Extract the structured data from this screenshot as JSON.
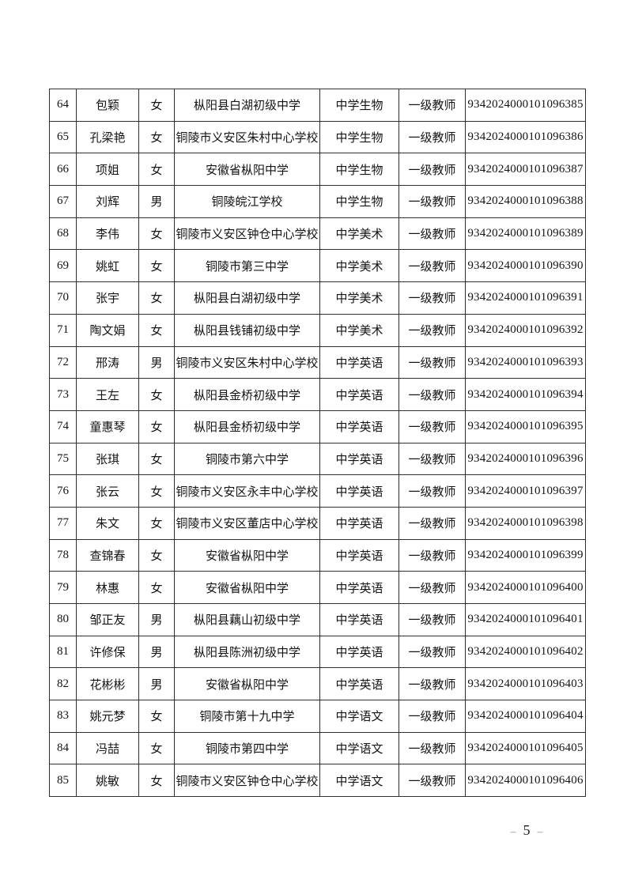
{
  "table": {
    "rows": [
      {
        "no": "64",
        "name": "包颖",
        "gender": "女",
        "school": "枞阳县白湖初级中学",
        "subject": "中学生物",
        "title": "一级教师",
        "cert": "9342024000101096385"
      },
      {
        "no": "65",
        "name": "孔梁艳",
        "gender": "女",
        "school": "铜陵市义安区朱村中心学校",
        "subject": "中学生物",
        "title": "一级教师",
        "cert": "9342024000101096386"
      },
      {
        "no": "66",
        "name": "项姐",
        "gender": "女",
        "school": "安徽省枞阳中学",
        "subject": "中学生物",
        "title": "一级教师",
        "cert": "9342024000101096387"
      },
      {
        "no": "67",
        "name": "刘辉",
        "gender": "男",
        "school": "铜陵皖江学校",
        "subject": "中学生物",
        "title": "一级教师",
        "cert": "9342024000101096388"
      },
      {
        "no": "68",
        "name": "李伟",
        "gender": "女",
        "school": "铜陵市义安区钟仓中心学校",
        "subject": "中学美术",
        "title": "一级教师",
        "cert": "9342024000101096389"
      },
      {
        "no": "69",
        "name": "姚虹",
        "gender": "女",
        "school": "铜陵市第三中学",
        "subject": "中学美术",
        "title": "一级教师",
        "cert": "9342024000101096390"
      },
      {
        "no": "70",
        "name": "张宇",
        "gender": "女",
        "school": "枞阳县白湖初级中学",
        "subject": "中学美术",
        "title": "一级教师",
        "cert": "9342024000101096391"
      },
      {
        "no": "71",
        "name": "陶文娟",
        "gender": "女",
        "school": "枞阳县钱铺初级中学",
        "subject": "中学美术",
        "title": "一级教师",
        "cert": "9342024000101096392"
      },
      {
        "no": "72",
        "name": "邢涛",
        "gender": "男",
        "school": "铜陵市义安区朱村中心学校",
        "subject": "中学英语",
        "title": "一级教师",
        "cert": "9342024000101096393"
      },
      {
        "no": "73",
        "name": "王左",
        "gender": "女",
        "school": "枞阳县金桥初级中学",
        "subject": "中学英语",
        "title": "一级教师",
        "cert": "9342024000101096394"
      },
      {
        "no": "74",
        "name": "童惠琴",
        "gender": "女",
        "school": "枞阳县金桥初级中学",
        "subject": "中学英语",
        "title": "一级教师",
        "cert": "9342024000101096395"
      },
      {
        "no": "75",
        "name": "张琪",
        "gender": "女",
        "school": "铜陵市第六中学",
        "subject": "中学英语",
        "title": "一级教师",
        "cert": "9342024000101096396"
      },
      {
        "no": "76",
        "name": "张云",
        "gender": "女",
        "school": "铜陵市义安区永丰中心学校",
        "subject": "中学英语",
        "title": "一级教师",
        "cert": "9342024000101096397"
      },
      {
        "no": "77",
        "name": "朱文",
        "gender": "女",
        "school": "铜陵市义安区董店中心学校",
        "subject": "中学英语",
        "title": "一级教师",
        "cert": "9342024000101096398"
      },
      {
        "no": "78",
        "name": "查锦春",
        "gender": "女",
        "school": "安徽省枞阳中学",
        "subject": "中学英语",
        "title": "一级教师",
        "cert": "9342024000101096399"
      },
      {
        "no": "79",
        "name": "林惠",
        "gender": "女",
        "school": "安徽省枞阳中学",
        "subject": "中学英语",
        "title": "一级教师",
        "cert": "9342024000101096400"
      },
      {
        "no": "80",
        "name": "邹正友",
        "gender": "男",
        "school": "枞阳县藕山初级中学",
        "subject": "中学英语",
        "title": "一级教师",
        "cert": "9342024000101096401"
      },
      {
        "no": "81",
        "name": "许修保",
        "gender": "男",
        "school": "枞阳县陈洲初级中学",
        "subject": "中学英语",
        "title": "一级教师",
        "cert": "9342024000101096402"
      },
      {
        "no": "82",
        "name": "花彬彬",
        "gender": "男",
        "school": "安徽省枞阳中学",
        "subject": "中学英语",
        "title": "一级教师",
        "cert": "9342024000101096403"
      },
      {
        "no": "83",
        "name": "姚元梦",
        "gender": "女",
        "school": "铜陵市第十九中学",
        "subject": "中学语文",
        "title": "一级教师",
        "cert": "9342024000101096404"
      },
      {
        "no": "84",
        "name": "冯喆",
        "gender": "女",
        "school": "铜陵市第四中学",
        "subject": "中学语文",
        "title": "一级教师",
        "cert": "9342024000101096405"
      },
      {
        "no": "85",
        "name": "姚敏",
        "gender": "女",
        "school": "铜陵市义安区钟仓中心学校",
        "subject": "中学语文",
        "title": "一级教师",
        "cert": "9342024000101096406"
      }
    ]
  },
  "footer": {
    "dash": "–",
    "page_number": "5"
  }
}
